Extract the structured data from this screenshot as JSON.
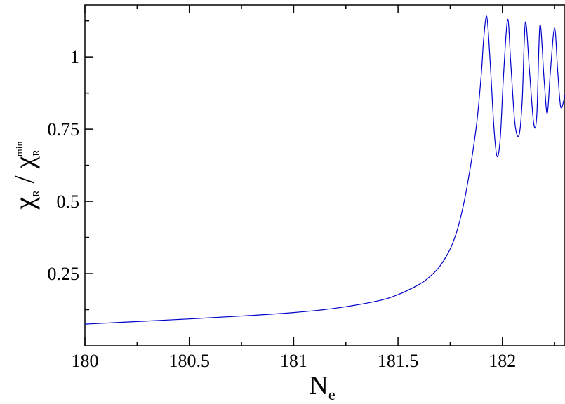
{
  "chart_data": {
    "type": "line",
    "title": "",
    "xlabel": {
      "main": "N",
      "sub": "e"
    },
    "ylabel": {
      "num": "χ",
      "num_sub": "R",
      "sep": " / ",
      "den": "χ",
      "den_sub": "R",
      "den_sup": "min"
    },
    "xlim": [
      180,
      182.3
    ],
    "ylim": [
      0,
      1.18
    ],
    "xticks": [
      {
        "value": 180,
        "label": "180"
      },
      {
        "value": 180.5,
        "label": "180.5"
      },
      {
        "value": 181,
        "label": "181"
      },
      {
        "value": 181.5,
        "label": "181.5"
      },
      {
        "value": 182,
        "label": "182"
      }
    ],
    "xminor_ticks": [
      180.25,
      180.75,
      181.25,
      181.75,
      182.25
    ],
    "yticks": [
      {
        "value": 0.25,
        "label": "0.25"
      },
      {
        "value": 0.5,
        "label": "0.5"
      },
      {
        "value": 0.75,
        "label": "0.75"
      },
      {
        "value": 1,
        "label": "1"
      }
    ],
    "yminor_ticks": [
      0.125,
      0.375,
      0.625,
      0.875,
      1.125
    ],
    "grid": false,
    "series": [
      {
        "color": "#0000cc",
        "x": [
          180.0,
          180.25,
          180.5,
          180.75,
          181.0,
          181.2,
          181.4,
          181.5,
          181.6,
          181.65,
          181.7,
          181.75,
          181.78,
          181.8,
          181.82,
          181.84,
          181.86,
          181.88,
          181.9,
          181.91,
          181.925,
          181.94,
          181.96,
          181.975,
          181.99,
          182.005,
          182.025,
          182.04,
          182.06,
          182.08,
          182.095,
          182.11,
          182.13,
          182.15,
          182.165,
          182.18,
          182.2,
          182.215,
          182.23,
          182.25,
          182.265,
          182.28,
          182.3
        ],
        "y": [
          0.075,
          0.084,
          0.093,
          0.103,
          0.115,
          0.13,
          0.155,
          0.177,
          0.212,
          0.238,
          0.275,
          0.335,
          0.392,
          0.445,
          0.51,
          0.59,
          0.68,
          0.79,
          0.95,
          1.06,
          1.14,
          1.0,
          0.75,
          0.655,
          0.72,
          0.93,
          1.13,
          0.98,
          0.77,
          0.73,
          0.85,
          1.12,
          0.95,
          0.77,
          0.8,
          1.11,
          0.92,
          0.805,
          0.95,
          1.1,
          0.95,
          0.825,
          0.87
        ]
      }
    ]
  }
}
